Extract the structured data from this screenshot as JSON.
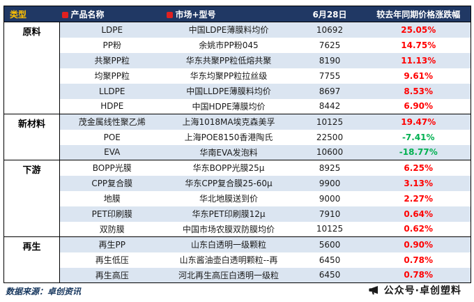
{
  "chart_data": {
    "type": "table",
    "columns": [
      {
        "label": "类型"
      },
      {
        "label": "产品名称",
        "icon": "red-marker-icon"
      },
      {
        "label": "市场+型号",
        "icon": "red-marker-icon"
      },
      {
        "label": "6月28日"
      },
      {
        "label": "较去年同期价格涨跌幅"
      }
    ],
    "groups": [
      {
        "category": "原料",
        "rows": [
          {
            "product": "LDPE",
            "market": "中国LDPE薄膜料均价",
            "price": "10692",
            "change": "25.05%"
          },
          {
            "product": "PP粉",
            "market": "余姚市PP粉045",
            "price": "7625",
            "change": "14.75%"
          },
          {
            "product": "共聚PP粒",
            "market": "华东共聚PP粒低熔共聚",
            "price": "8190",
            "change": "11.13%"
          },
          {
            "product": "均聚PP粒",
            "market": "华东均聚PP粒拉丝级",
            "price": "7755",
            "change": "9.61%"
          },
          {
            "product": "LLDPE",
            "market": "中国LLDPE薄膜料均价",
            "price": "8697",
            "change": "8.53%"
          },
          {
            "product": "HDPE",
            "market": "中国HDPE薄膜均价",
            "price": "8442",
            "change": "6.90%"
          }
        ]
      },
      {
        "category": "新材料",
        "rows": [
          {
            "product": "茂金属线性聚乙烯",
            "market": "上海1018MA埃克森美孚",
            "price": "10125",
            "change": "19.47%"
          },
          {
            "product": "POE",
            "market": "上海POE8150香港陶氏",
            "price": "22500",
            "change": "-7.41%"
          },
          {
            "product": "EVA",
            "market": "华南EVA发泡料",
            "price": "10600",
            "change": "-18.77%"
          }
        ]
      },
      {
        "category": "下游",
        "rows": [
          {
            "product": "BOPP光膜",
            "market": "华东BOPP光膜25μ",
            "price": "8925",
            "change": "6.25%"
          },
          {
            "product": "CPP复合膜",
            "market": "华东CPP复合膜25-60μ",
            "price": "9900",
            "change": "3.13%"
          },
          {
            "product": "地膜",
            "market": "华北地膜送到价",
            "price": "9000",
            "change": "2.27%"
          },
          {
            "product": "PET印刷膜",
            "market": "华东PET印刷膜12μ",
            "price": "7910",
            "change": "0.64%"
          },
          {
            "product": "双防膜",
            "market": "中国市场农膜双防膜均价",
            "price": "10125",
            "change": "0.62%"
          }
        ]
      },
      {
        "category": "再生",
        "rows": [
          {
            "product": "再生PP",
            "market": "山东白透明一级颗粒",
            "price": "5600",
            "change": "0.90%"
          },
          {
            "product": "再生低压",
            "market": "山东酱油壶白透明颗粒--再",
            "price": "6450",
            "change": "0.78%"
          },
          {
            "product": "再生高压",
            "market": "河北再生高压白透明一级粒",
            "price": "6450",
            "change": "0.78%"
          }
        ]
      }
    ]
  },
  "footer": {
    "source": "数据来源：卓创资讯",
    "wechat": "公众号·卓创塑料"
  },
  "colors": {
    "header_bg": "#203864",
    "header_text": "#FFFFFF",
    "type_header_text": "#FFC000",
    "row_alt_bg": "#DBE5F1",
    "row_bg": "#FFFFFF",
    "up": "#FF0000",
    "down": "#00B050",
    "marker_red": "#E02020",
    "source_text": "#17375E"
  }
}
